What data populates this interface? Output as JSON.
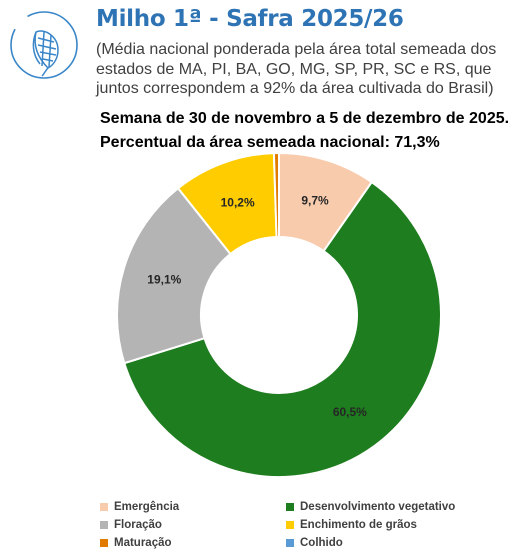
{
  "header": {
    "title": "Milho 1ª - Safra 2025/26",
    "subtitle": "(Média nacional ponderada pela área total semeada dos estados de MA, PI, BA, GO, MG, SP, PR, SC e RS, que juntos correspondem a 92% da área cultivada do Brasil)",
    "week": "Semana de 30 de novembro a 5 de dezembro de 2025.",
    "percent_line": "Percentual da área semeada nacional: 71,3%"
  },
  "colors": {
    "title": "#2e74b5",
    "logo": "#3a86c8"
  },
  "chart_data": {
    "type": "pie",
    "donut": true,
    "categories": [
      "Emergência",
      "Desenvolvimento vegetativo",
      "Floração",
      "Enchimento de grãos",
      "Maturação",
      "Colhido"
    ],
    "values": [
      9.7,
      60.5,
      19.1,
      10.2,
      0.5,
      0
    ],
    "labels": [
      "9,7%",
      "60,5%",
      "19,1%",
      "10,2%",
      "",
      ""
    ],
    "colors": [
      "#f8cbad",
      "#1e7d1e",
      "#b4b4b4",
      "#ffcc00",
      "#e07b00",
      "#5b9bd5"
    ],
    "start_angle_deg": 0,
    "legend_position": "bottom"
  }
}
